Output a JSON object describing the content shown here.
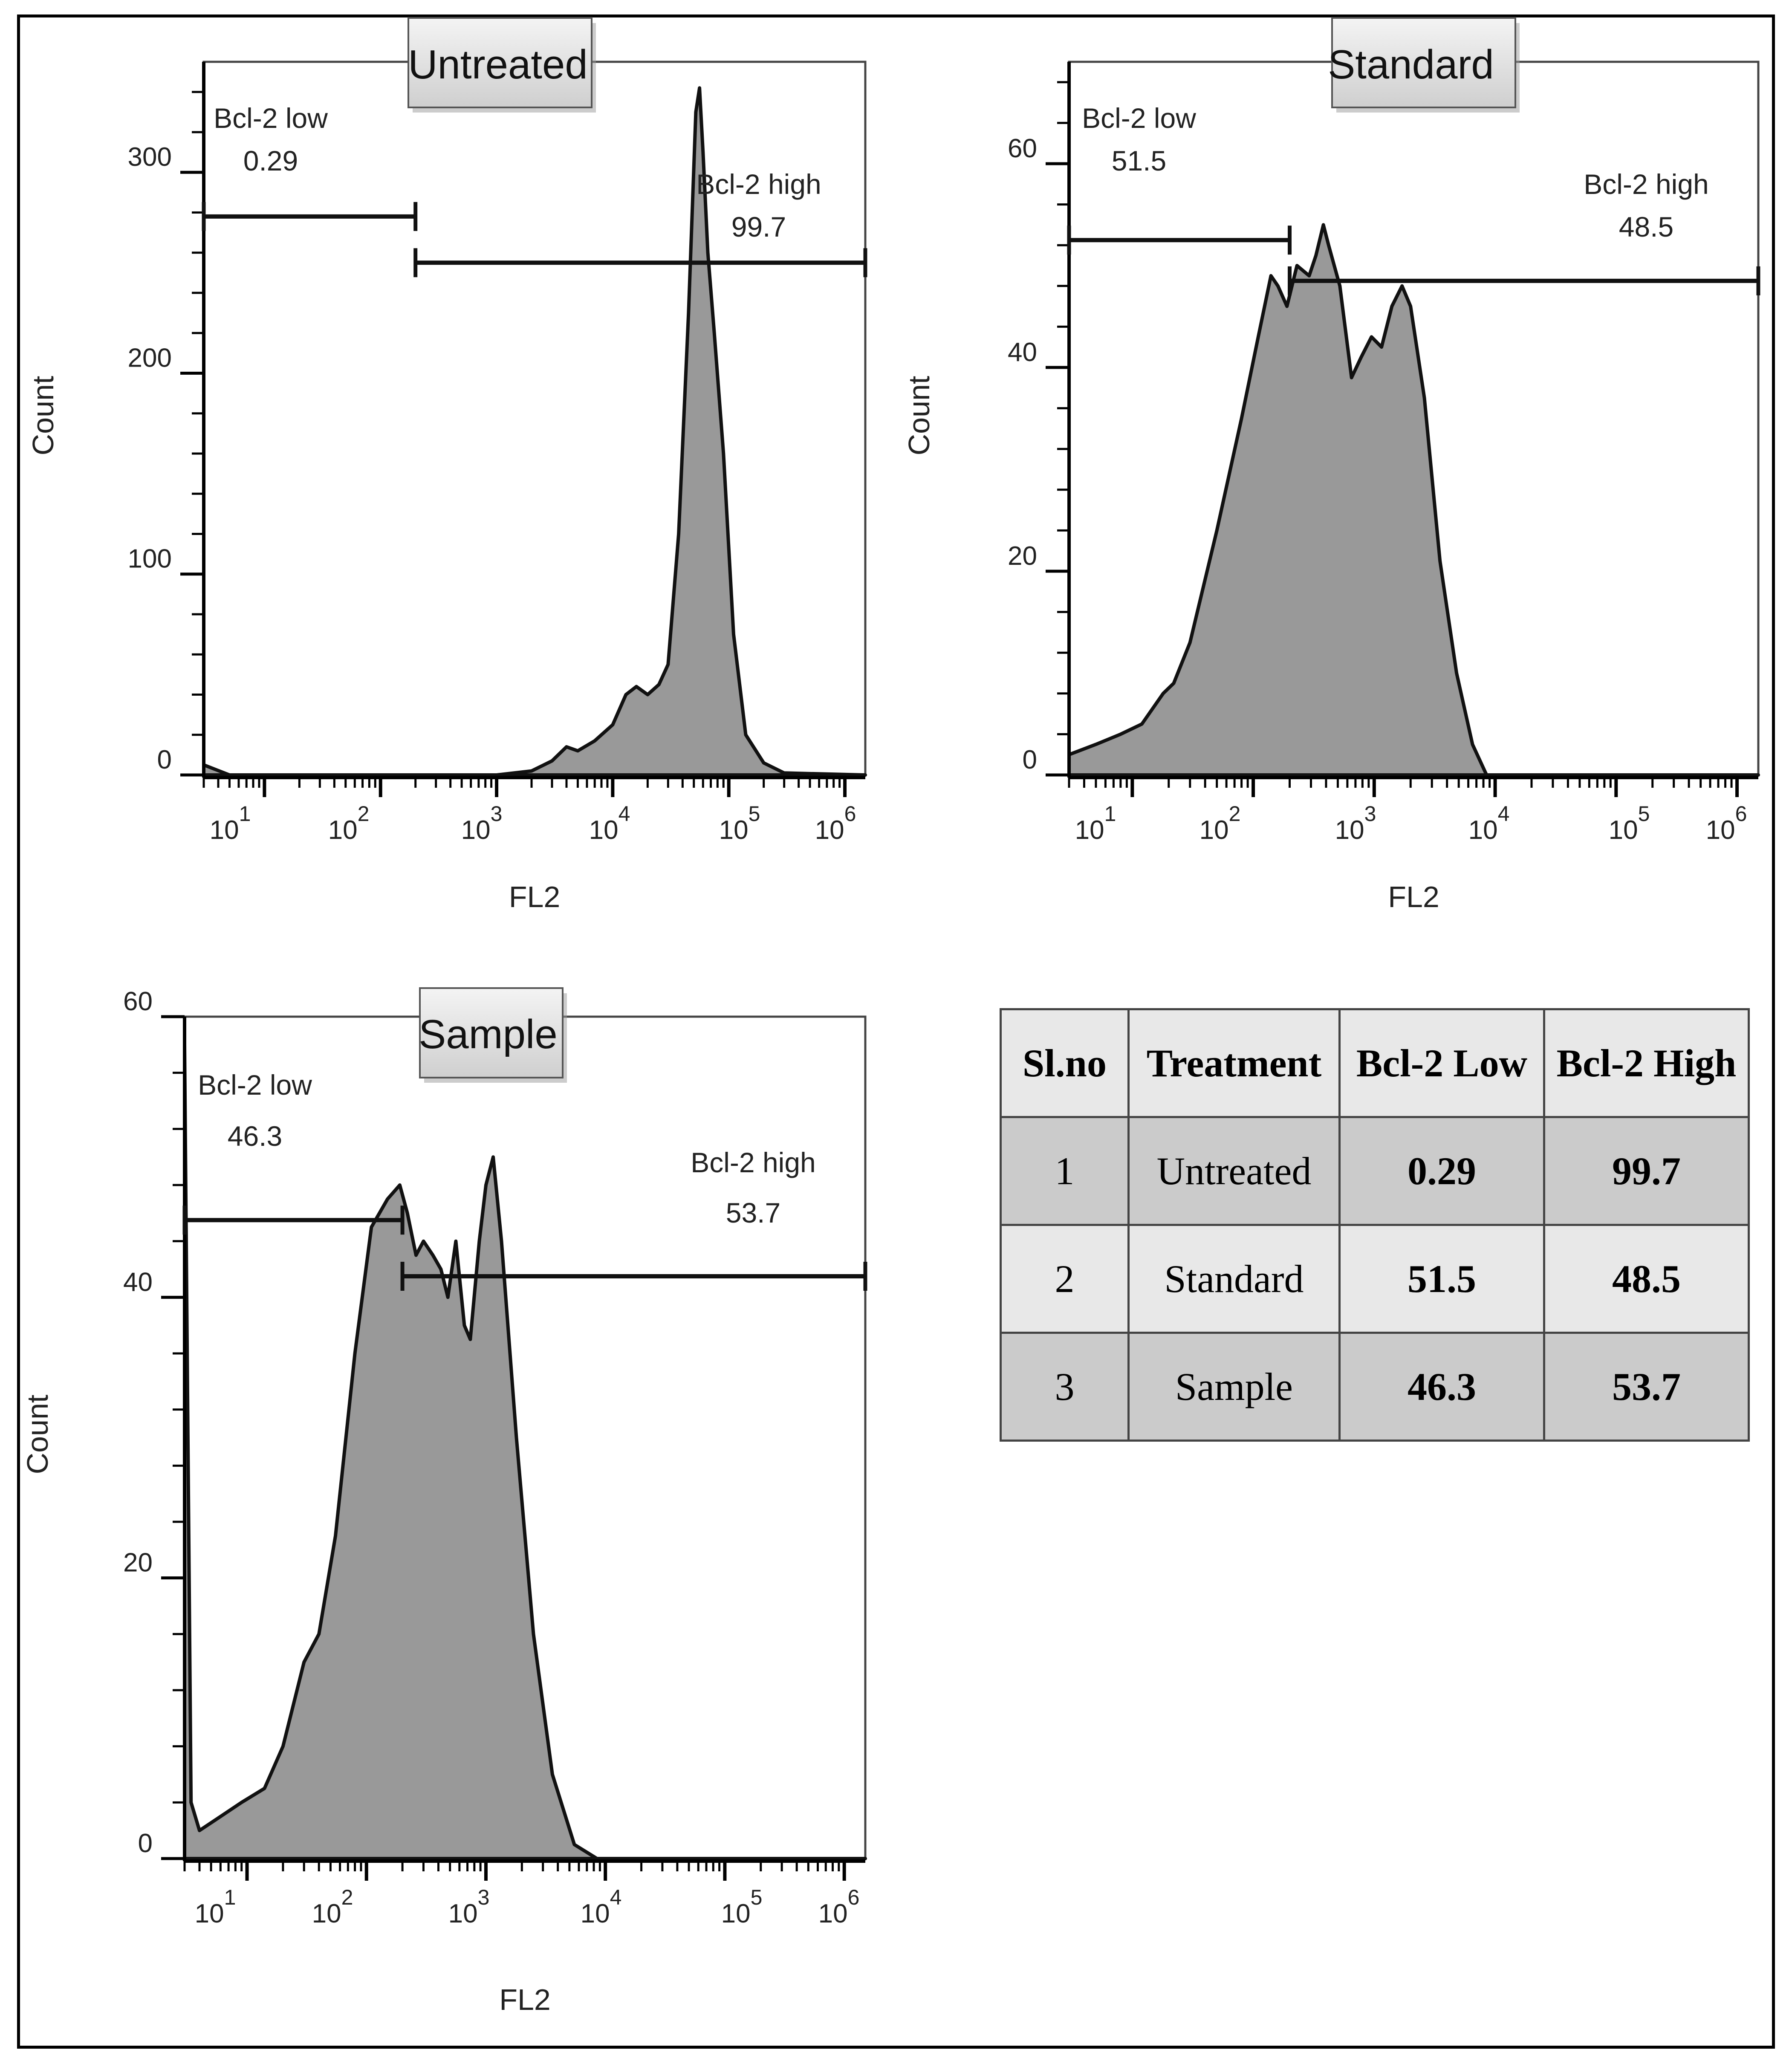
{
  "chart_data": [
    {
      "type": "area",
      "title": "Untreated",
      "xlabel": "FL2",
      "ylabel": "Count",
      "x_scale": "log",
      "xlim": [
        3,
        1500000
      ],
      "ylim": [
        0,
        355
      ],
      "xticks": [
        {
          "base": "10",
          "exp": "1"
        },
        {
          "base": "10",
          "exp": "2"
        },
        {
          "base": "10",
          "exp": "3"
        },
        {
          "base": "10",
          "exp": "4"
        },
        {
          "base": "10",
          "exp": "5"
        },
        {
          "base": "10",
          "exp": "6"
        }
      ],
      "yticks": [
        {
          "value": 0,
          "label": "0"
        },
        {
          "value": 100,
          "label": "100"
        },
        {
          "value": 200,
          "label": "200"
        },
        {
          "value": 300,
          "label": "300"
        }
      ],
      "gates": [
        {
          "name": "Bcl-2 low",
          "value": "0.29",
          "x_range": [
            3,
            200
          ],
          "y": 278
        },
        {
          "name": "Bcl-2 high",
          "value": "99.7",
          "x_range": [
            200,
            1500000
          ],
          "y": 255
        }
      ],
      "series": [
        {
          "name": "Untreated",
          "points": [
            [
              3,
              5
            ],
            [
              5,
              0
            ],
            [
              1000,
              0
            ],
            [
              2000,
              2
            ],
            [
              3000,
              7
            ],
            [
              4000,
              14
            ],
            [
              5000,
              12
            ],
            [
              7000,
              17
            ],
            [
              10000,
              25
            ],
            [
              13000,
              40
            ],
            [
              16000,
              44
            ],
            [
              20000,
              40
            ],
            [
              25000,
              45
            ],
            [
              30000,
              55
            ],
            [
              37000,
              120
            ],
            [
              45000,
              230
            ],
            [
              52000,
              330
            ],
            [
              56000,
              342
            ],
            [
              60000,
              310
            ],
            [
              66000,
              260
            ],
            [
              75000,
              220
            ],
            [
              90000,
              160
            ],
            [
              110000,
              70
            ],
            [
              140000,
              20
            ],
            [
              200000,
              6
            ],
            [
              300000,
              1
            ],
            [
              1500000,
              0
            ]
          ]
        }
      ]
    },
    {
      "type": "area",
      "title": "Standard",
      "xlabel": "FL2",
      "ylabel": "Count",
      "x_scale": "log",
      "xlim": [
        3,
        1500000
      ],
      "ylim": [
        0,
        70
      ],
      "xticks": [
        {
          "base": "10",
          "exp": "1"
        },
        {
          "base": "10",
          "exp": "2"
        },
        {
          "base": "10",
          "exp": "3"
        },
        {
          "base": "10",
          "exp": "4"
        },
        {
          "base": "10",
          "exp": "5"
        },
        {
          "base": "10",
          "exp": "6"
        }
      ],
      "yticks": [
        {
          "value": 0,
          "label": "0"
        },
        {
          "value": 20,
          "label": "20"
        },
        {
          "value": 40,
          "label": "40"
        },
        {
          "value": 60,
          "label": "60"
        }
      ],
      "gates": [
        {
          "name": "Bcl-2 low",
          "value": "51.5",
          "x_range": [
            3,
            200
          ],
          "y": 52.5
        },
        {
          "name": "Bcl-2 high",
          "value": "48.5",
          "x_range": [
            200,
            1500000
          ],
          "y": 48.5
        }
      ],
      "series": [
        {
          "name": "Standard",
          "points": [
            [
              3,
              2
            ],
            [
              5,
              3
            ],
            [
              8,
              4
            ],
            [
              12,
              5
            ],
            [
              18,
              8
            ],
            [
              22,
              9
            ],
            [
              30,
              13
            ],
            [
              50,
              24
            ],
            [
              80,
              35
            ],
            [
              110,
              43
            ],
            [
              140,
              49
            ],
            [
              160,
              48
            ],
            [
              190,
              46
            ],
            [
              230,
              50
            ],
            [
              290,
              49
            ],
            [
              330,
              51
            ],
            [
              380,
              54
            ],
            [
              420,
              52
            ],
            [
              520,
              48
            ],
            [
              650,
              39
            ],
            [
              780,
              41
            ],
            [
              950,
              43
            ],
            [
              1150,
              42
            ],
            [
              1400,
              46
            ],
            [
              1700,
              48
            ],
            [
              2000,
              46
            ],
            [
              2600,
              37
            ],
            [
              3500,
              21
            ],
            [
              4800,
              10
            ],
            [
              6500,
              3
            ],
            [
              8500,
              0
            ],
            [
              1500000,
              0
            ]
          ]
        }
      ]
    },
    {
      "type": "area",
      "title": "Sample",
      "xlabel": "FL2",
      "ylabel": "Count",
      "x_scale": "log",
      "xlim": [
        3,
        1500000
      ],
      "ylim": [
        0,
        60
      ],
      "xticks": [
        {
          "base": "10",
          "exp": "1"
        },
        {
          "base": "10",
          "exp": "2"
        },
        {
          "base": "10",
          "exp": "3"
        },
        {
          "base": "10",
          "exp": "4"
        },
        {
          "base": "10",
          "exp": "5"
        },
        {
          "base": "10",
          "exp": "6"
        }
      ],
      "yticks": [
        {
          "value": 0,
          "label": "0"
        },
        {
          "value": 20,
          "label": "20"
        },
        {
          "value": 40,
          "label": "40"
        },
        {
          "value": 60,
          "label": "60"
        }
      ],
      "gates": [
        {
          "name": "Bcl-2 low",
          "value": "46.3",
          "x_range": [
            3,
            200
          ],
          "y": 45.5
        },
        {
          "name": "Bcl-2 high",
          "value": "53.7",
          "x_range": [
            200,
            1500000
          ],
          "y": 41.5
        }
      ],
      "series": [
        {
          "name": "Sample",
          "points": [
            [
              3,
              58
            ],
            [
              3.4,
              4
            ],
            [
              4,
              2
            ],
            [
              6,
              3
            ],
            [
              9,
              4
            ],
            [
              14,
              5
            ],
            [
              20,
              8
            ],
            [
              30,
              14
            ],
            [
              40,
              16
            ],
            [
              55,
              23
            ],
            [
              80,
              36
            ],
            [
              110,
              45
            ],
            [
              150,
              47
            ],
            [
              190,
              48
            ],
            [
              220,
              46
            ],
            [
              260,
              43
            ],
            [
              300,
              44
            ],
            [
              360,
              43
            ],
            [
              420,
              42
            ],
            [
              480,
              40
            ],
            [
              560,
              44
            ],
            [
              660,
              38
            ],
            [
              740,
              37
            ],
            [
              880,
              44
            ],
            [
              1000,
              48
            ],
            [
              1150,
              50
            ],
            [
              1350,
              44
            ],
            [
              1800,
              30
            ],
            [
              2500,
              16
            ],
            [
              3600,
              6
            ],
            [
              5500,
              1
            ],
            [
              8500,
              0
            ],
            [
              1500000,
              0
            ]
          ]
        }
      ]
    }
  ],
  "summary_table": {
    "headers": [
      "Sl.no",
      "Treatment",
      "Bcl-2 Low",
      "Bcl-2 High"
    ],
    "rows": [
      [
        "1",
        "Untreated",
        "0.29",
        "99.7"
      ],
      [
        "2",
        "Standard",
        "51.5",
        "48.5"
      ],
      [
        "3",
        "Sample",
        "46.3",
        "53.7"
      ]
    ]
  },
  "colors": {
    "fill": "#999999",
    "outline": "#111111"
  }
}
